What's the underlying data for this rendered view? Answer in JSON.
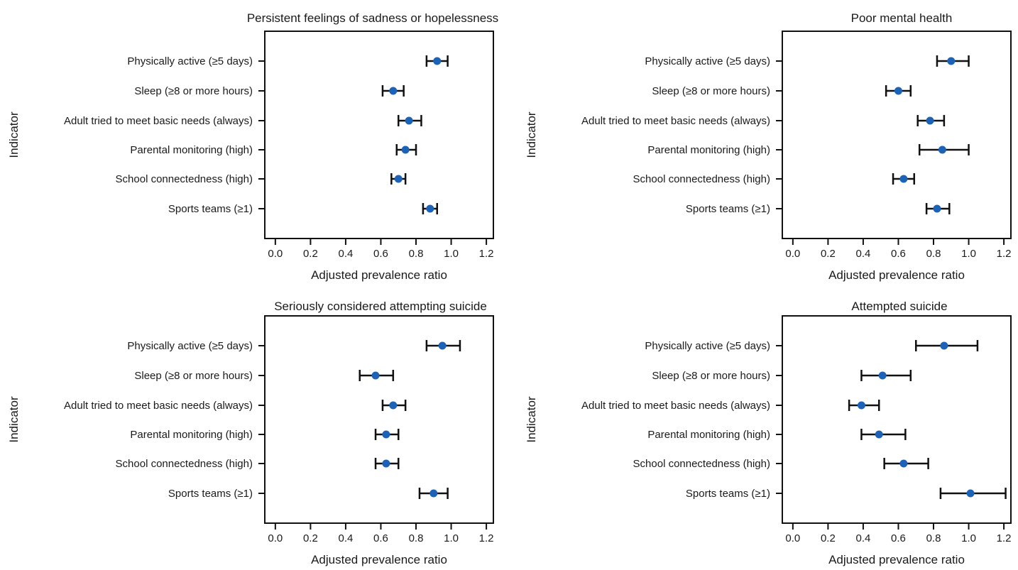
{
  "figure": {
    "chart_data": [
      {
        "type": "scatter",
        "title": "Persistent feelings of sadness or hopelessness",
        "xlabel": "Adjusted prevalence ratio",
        "ylabel": "Indicator",
        "categories": [
          "Physically active (≥5 days)",
          "Sleep (≥8 or more hours)",
          "Adult tried to meet basic needs (always)",
          "Parental monitoring (high)",
          "School connectedness (high)",
          "Sports teams (≥1)"
        ],
        "values": [
          0.92,
          0.67,
          0.76,
          0.74,
          0.7,
          0.88
        ],
        "ci_lower": [
          0.86,
          0.61,
          0.7,
          0.69,
          0.66,
          0.84
        ],
        "ci_upper": [
          0.98,
          0.73,
          0.83,
          0.8,
          0.74,
          0.92
        ],
        "xlim": [
          -0.06,
          1.24
        ],
        "xticks": [
          "0.0",
          "0.2",
          "0.4",
          "0.6",
          "0.8",
          "1.0",
          "1.2"
        ],
        "grid": false
      },
      {
        "type": "scatter",
        "title": "Poor mental health",
        "xlabel": "Adjusted prevalence ratio",
        "ylabel": "Indicator",
        "categories": [
          "Physically active (≥5 days)",
          "Sleep (≥8 or more hours)",
          "Adult tried to meet basic needs (always)",
          "Parental monitoring (high)",
          "School connectedness (high)",
          "Sports teams (≥1)"
        ],
        "values": [
          0.9,
          0.6,
          0.78,
          0.85,
          0.63,
          0.82
        ],
        "ci_lower": [
          0.82,
          0.53,
          0.71,
          0.72,
          0.57,
          0.76
        ],
        "ci_upper": [
          1.0,
          0.67,
          0.86,
          1.0,
          0.69,
          0.89
        ],
        "xlim": [
          -0.06,
          1.24
        ],
        "xticks": [
          "0.0",
          "0.2",
          "0.4",
          "0.6",
          "0.8",
          "1.0",
          "1.2"
        ],
        "grid": false
      },
      {
        "type": "scatter",
        "title": "Seriously considered attempting suicide",
        "xlabel": "Adjusted prevalence ratio",
        "ylabel": "Indicator",
        "categories": [
          "Physically active (≥5 days)",
          "Sleep (≥8 or more hours)",
          "Adult tried to meet basic needs (always)",
          "Parental monitoring (high)",
          "School connectedness (high)",
          "Sports teams (≥1)"
        ],
        "values": [
          0.95,
          0.57,
          0.67,
          0.63,
          0.63,
          0.9
        ],
        "ci_lower": [
          0.86,
          0.48,
          0.61,
          0.57,
          0.57,
          0.82
        ],
        "ci_upper": [
          1.05,
          0.67,
          0.74,
          0.7,
          0.7,
          0.98
        ],
        "xlim": [
          -0.06,
          1.24
        ],
        "xticks": [
          "0.0",
          "0.2",
          "0.4",
          "0.6",
          "0.8",
          "1.0",
          "1.2"
        ],
        "grid": false
      },
      {
        "type": "scatter",
        "title": "Attempted suicide",
        "xlabel": "Adjusted prevalence ratio",
        "ylabel": "Indicator",
        "categories": [
          "Physically active (≥5 days)",
          "Sleep (≥8 or more hours)",
          "Adult tried to meet basic needs (always)",
          "Parental monitoring (high)",
          "School connectedness (high)",
          "Sports teams (≥1)"
        ],
        "values": [
          0.86,
          0.51,
          0.39,
          0.49,
          0.63,
          1.01
        ],
        "ci_lower": [
          0.7,
          0.39,
          0.32,
          0.39,
          0.52,
          0.84
        ],
        "ci_upper": [
          1.05,
          0.67,
          0.49,
          0.64,
          0.77,
          1.21
        ],
        "xlim": [
          -0.06,
          1.24
        ],
        "xticks": [
          "0.0",
          "0.2",
          "0.4",
          "0.6",
          "0.8",
          "1.0",
          "1.2"
        ],
        "grid": false
      }
    ]
  },
  "colors": {
    "point": "#1c63b7",
    "errorbar": "#111111",
    "axis": "#111111",
    "text": "#1a1a1a"
  }
}
